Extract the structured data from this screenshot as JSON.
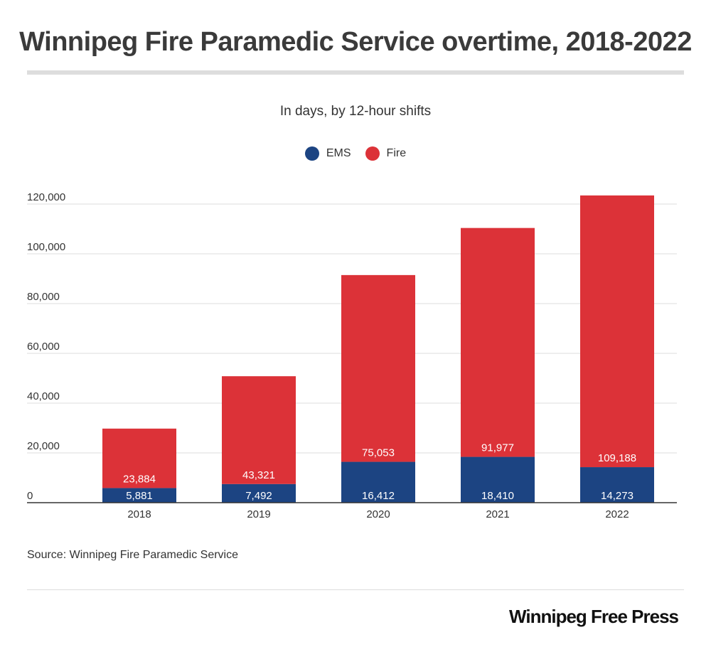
{
  "title": "Winnipeg Fire Paramedic Service overtime, 2018-2022",
  "subtitle": "In days, by 12-hour shifts",
  "source": "Source: Winnipeg Fire Paramedic Service",
  "brand": "Winnipeg Free Press",
  "chart_data": {
    "type": "bar",
    "stacked": true,
    "title": "Winnipeg Fire Paramedic Service overtime, 2018-2022",
    "subtitle": "In days, by 12-hour shifts",
    "xlabel": "",
    "ylabel": "",
    "categories": [
      "2018",
      "2019",
      "2020",
      "2021",
      "2022"
    ],
    "series": [
      {
        "name": "EMS",
        "color": "#1c4482",
        "values": [
          5881,
          7492,
          16412,
          18410,
          14273
        ],
        "labels": [
          "5,881",
          "7,492",
          "16,412",
          "18,410",
          "14,273"
        ]
      },
      {
        "name": "Fire",
        "color": "#dc3238",
        "values": [
          23884,
          43321,
          75053,
          91977,
          109188
        ],
        "labels": [
          "23,884",
          "43,321",
          "75,053",
          "91,977",
          "109,188"
        ]
      }
    ],
    "ylim": [
      0,
      120000
    ],
    "yticks": [
      0,
      20000,
      40000,
      60000,
      80000,
      100000,
      120000
    ],
    "ytick_labels": [
      "0",
      "20,000",
      "40,000",
      "60,000",
      "80,000",
      "100,000",
      "120,000"
    ],
    "grid": true,
    "legend_position": "top-center"
  }
}
